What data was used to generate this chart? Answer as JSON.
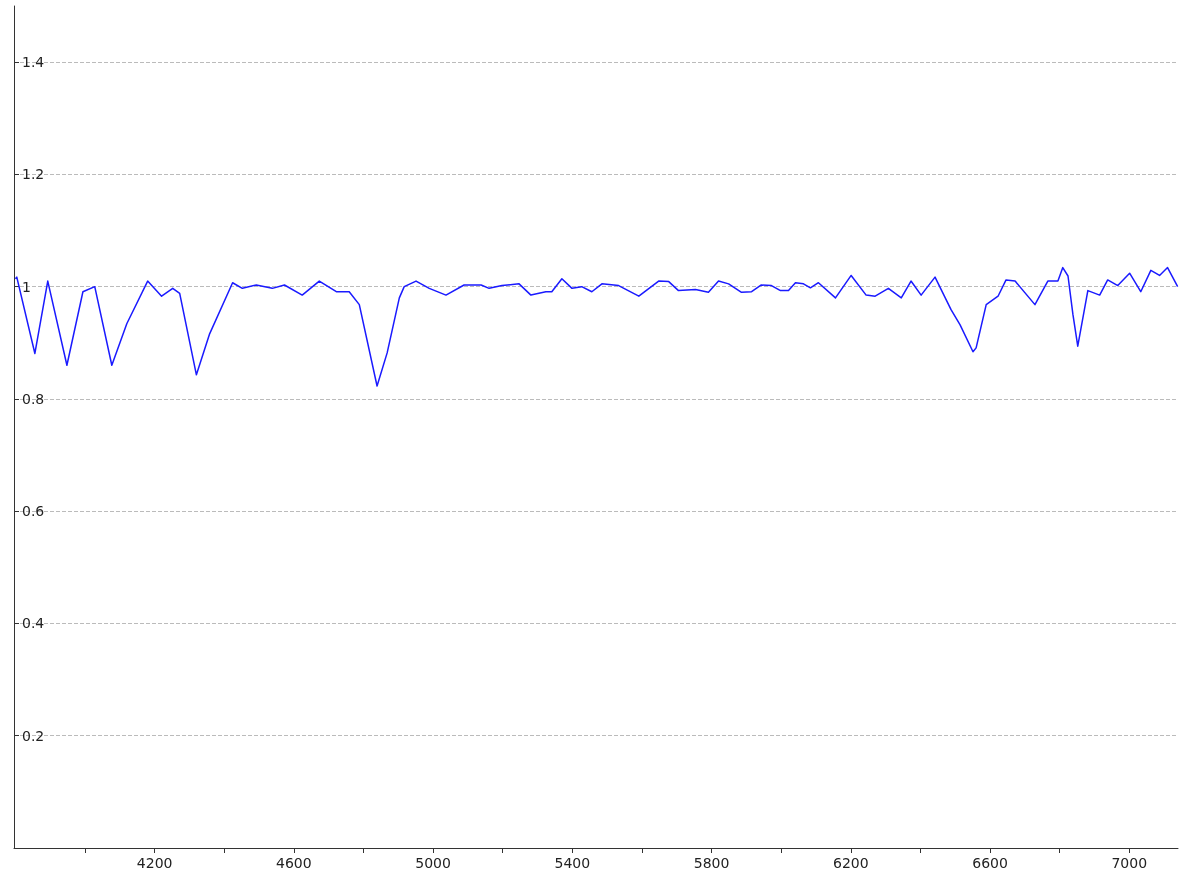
{
  "chart_data": {
    "type": "line",
    "x": [
      3800,
      3804,
      3856,
      3893,
      3948,
      3994,
      4028,
      4077,
      4120,
      4180,
      4220,
      4252,
      4272,
      4320,
      4358,
      4424,
      4452,
      4492,
      4538,
      4573,
      4624,
      4673,
      4722,
      4759,
      4788,
      4839,
      4868,
      4903,
      4917,
      4951,
      4989,
      5037,
      5089,
      5138,
      5161,
      5198,
      5247,
      5281,
      5324,
      5341,
      5370,
      5399,
      5427,
      5456,
      5485,
      5533,
      5591,
      5648,
      5677,
      5705,
      5754,
      5791,
      5820,
      5849,
      5886,
      5915,
      5943,
      5972,
      5998,
      6021,
      6041,
      6064,
      6084,
      6107,
      6156,
      6201,
      6244,
      6270,
      6308,
      6345,
      6373,
      6402,
      6442,
      6488,
      6514,
      6551,
      6560,
      6589,
      6623,
      6646,
      6672,
      6729,
      6766,
      6795,
      6809,
      6824,
      6838,
      6852,
      6881,
      6915,
      6938,
      6967,
      7001,
      7033,
      7062,
      7087,
      7110,
      7139
    ],
    "series": [
      {
        "color": "#1a1aff",
        "values": [
          1.014,
          1.017,
          0.881,
          1.01,
          0.86,
          0.991,
          1.0,
          0.86,
          0.934,
          1.01,
          0.983,
          0.997,
          0.988,
          0.843,
          0.916,
          1.007,
          0.997,
          1.003,
          0.997,
          1.003,
          0.985,
          1.01,
          0.991,
          0.991,
          0.968,
          0.823,
          0.882,
          0.98,
          1.0,
          1.01,
          0.997,
          0.985,
          1.003,
          1.003,
          0.997,
          1.002,
          1.005,
          0.985,
          0.991,
          0.991,
          1.014,
          0.997,
          1.0,
          0.991,
          1.005,
          1.002,
          0.983,
          1.01,
          1.009,
          0.993,
          0.995,
          0.99,
          1.01,
          1.005,
          0.99,
          0.991,
          1.003,
          1.002,
          0.993,
          0.993,
          1.007,
          1.005,
          0.998,
          1.007,
          0.98,
          1.02,
          0.985,
          0.983,
          0.997,
          0.98,
          1.01,
          0.985,
          1.017,
          0.959,
          0.932,
          0.884,
          0.891,
          0.968,
          0.983,
          1.012,
          1.01,
          0.968,
          1.01,
          1.01,
          1.034,
          1.019,
          0.951,
          0.894,
          0.993,
          0.985,
          1.012,
          1.002,
          1.024,
          0.991,
          1.029,
          1.02,
          1.034,
          1.0
        ]
      }
    ],
    "xlim": [
      3796,
      7140
    ],
    "xticks": [
      {
        "value": 4000,
        "label": null
      },
      4200,
      {
        "value": 4400,
        "label": null
      },
      4600,
      {
        "value": 4800,
        "label": null
      },
      5000,
      {
        "value": 5200,
        "label": null
      },
      5400,
      {
        "value": 5600,
        "label": null
      },
      5800,
      {
        "value": 6000,
        "label": null
      },
      6200,
      {
        "value": 6400,
        "label": null
      },
      6600,
      {
        "value": 6800,
        "label": null
      },
      7000
    ],
    "ylim": [
      0,
      1.5
    ],
    "yticks": [
      0.2,
      0.4,
      0.6,
      0.8,
      1,
      1.2,
      1.4
    ],
    "grid": "y",
    "marker": "none",
    "line_style": "solid"
  }
}
